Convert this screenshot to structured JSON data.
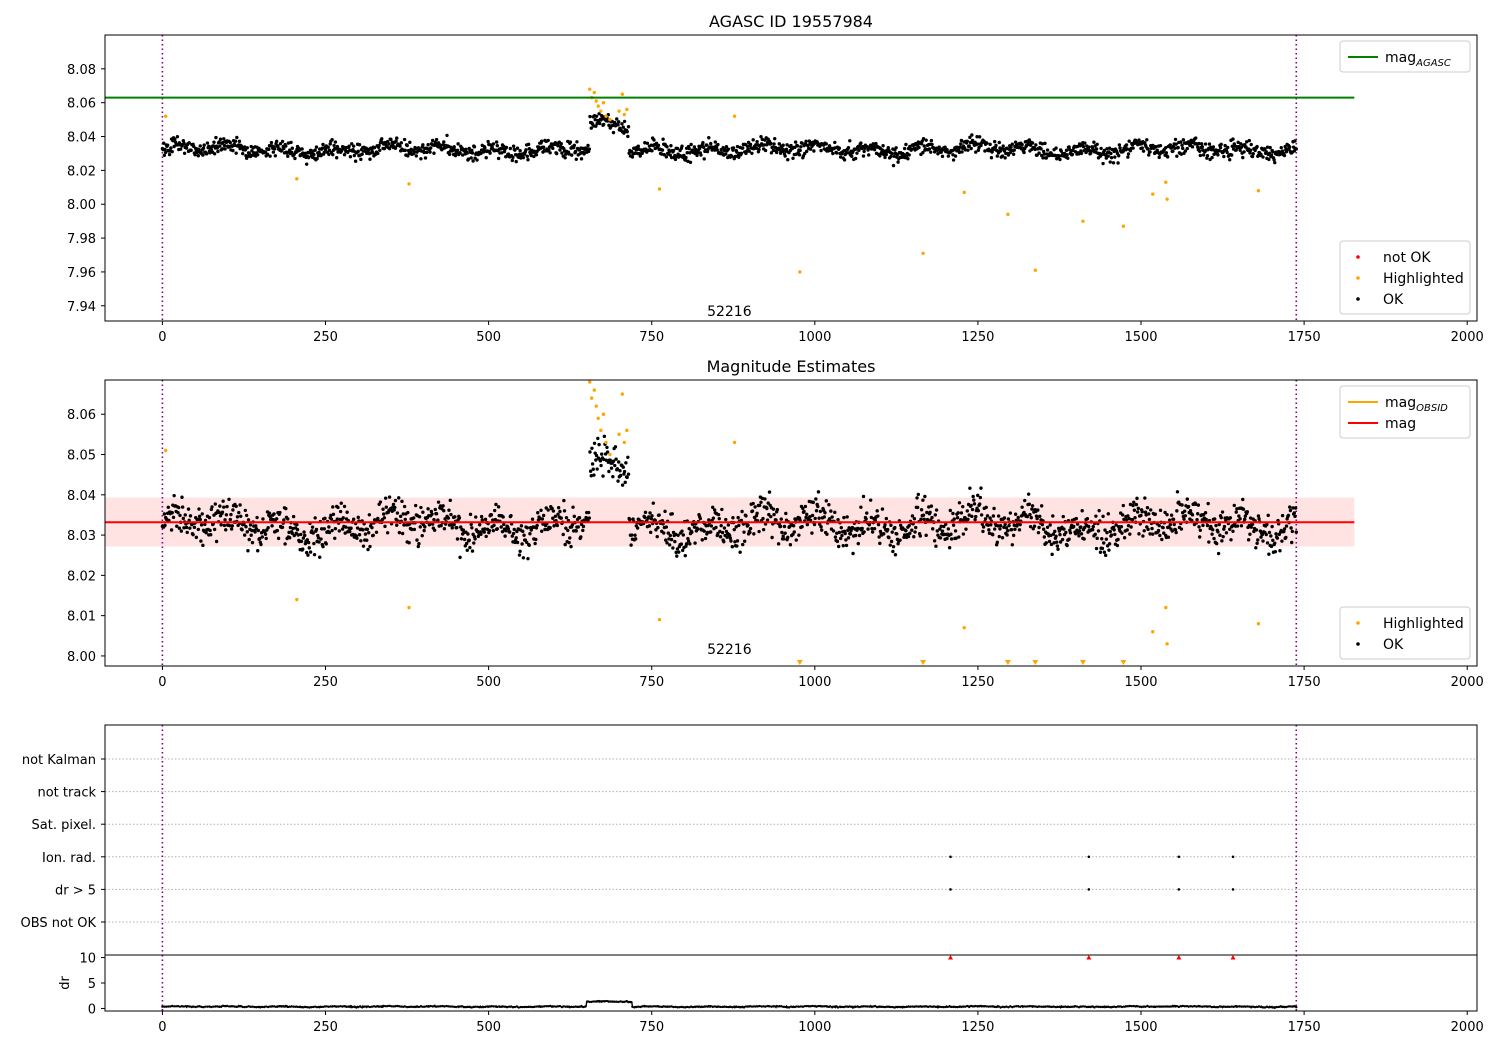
{
  "chart_data": [
    {
      "type": "scatter",
      "title": "AGASC ID 19557984",
      "xlim": [
        -88,
        2015
      ],
      "ylim": [
        7.931,
        8.1
      ],
      "xticks": [
        0,
        250,
        500,
        750,
        1000,
        1250,
        1500,
        1750,
        2000
      ],
      "yticks": [
        7.94,
        7.96,
        7.98,
        8.0,
        8.02,
        8.04,
        8.06,
        8.08
      ],
      "ytick_decimals": 2,
      "grid": false,
      "vlines": [
        0,
        1738
      ],
      "hline": {
        "name": "mag_AGASC",
        "y": 8.063,
        "x_end": 1827,
        "color": "#008000"
      },
      "annotation": {
        "text": "52216",
        "x": 869,
        "y": 7.934
      },
      "legends": [
        {
          "placement": "top-right",
          "entries": [
            {
              "kind": "line",
              "label": "mag",
              "sub": "AGASC",
              "color": "#008000"
            }
          ]
        },
        {
          "placement": "bottom-right",
          "entries": [
            {
              "kind": "point",
              "label": "not OK",
              "color": "#ff0000"
            },
            {
              "kind": "point",
              "label": "Highlighted",
              "color": "#ffa500"
            },
            {
              "kind": "point",
              "label": "OK",
              "color": "#000000"
            }
          ]
        }
      ],
      "series": [
        {
          "name": "OK",
          "color": "#000000",
          "generated": {
            "n": 1738,
            "x_min": 0,
            "x_max": 1738,
            "base": 8.0325,
            "noise": 0.006,
            "bumps": [
              {
                "x0": 655,
                "x1": 715,
                "y": 8.046
              }
            ]
          }
        },
        {
          "name": "Highlighted",
          "color": "#ffa500",
          "x": [
            5,
            206,
            378,
            762,
            877,
            977,
            1166,
            1229,
            1296,
            1338,
            1411,
            1473,
            1518,
            1538,
            1540,
            1680,
            655,
            658,
            662,
            665,
            668,
            672,
            676,
            680,
            686,
            700,
            705,
            708,
            712
          ],
          "y": [
            8.052,
            8.015,
            8.012,
            8.009,
            8.052,
            7.96,
            7.971,
            8.007,
            7.994,
            7.961,
            7.99,
            7.987,
            8.006,
            8.013,
            8.003,
            8.008,
            8.068,
            8.063,
            8.066,
            8.061,
            8.058,
            8.055,
            8.06,
            8.052,
            8.05,
            8.055,
            8.065,
            8.053,
            8.056
          ]
        }
      ]
    },
    {
      "type": "scatter",
      "title": "Magnitude Estimates",
      "xlim": [
        -88,
        2015
      ],
      "ylim": [
        7.9975,
        8.0685
      ],
      "xticks": [
        0,
        250,
        500,
        750,
        1000,
        1250,
        1500,
        1750,
        2000
      ],
      "yticks": [
        8.0,
        8.01,
        8.02,
        8.03,
        8.04,
        8.05,
        8.06
      ],
      "ytick_decimals": 2,
      "grid": false,
      "vlines": [
        0,
        1738
      ],
      "hline": {
        "name": "mag",
        "y": 8.0332,
        "x_end": 1827,
        "color": "#ff0000"
      },
      "band": {
        "y_low": 8.0272,
        "y_high": 8.0393,
        "x_end": 1827,
        "color": "#ffcccc"
      },
      "annotation": {
        "text": "52216",
        "x": 869,
        "y": 8.0005
      },
      "legends": [
        {
          "placement": "top-right",
          "entries": [
            {
              "kind": "line",
              "label": "mag",
              "sub": "OBSID",
              "color": "#ffa500"
            },
            {
              "kind": "line",
              "label": "mag",
              "sub": "",
              "color": "#ff0000"
            }
          ]
        },
        {
          "placement": "bottom-right",
          "entries": [
            {
              "kind": "point",
              "label": "Highlighted",
              "color": "#ffa500"
            },
            {
              "kind": "point",
              "label": "OK",
              "color": "#000000"
            }
          ]
        }
      ],
      "series": [
        {
          "name": "OK",
          "color": "#000000",
          "generated": {
            "n": 1738,
            "x_min": 0,
            "x_max": 1738,
            "base": 8.0325,
            "noise": 0.006,
            "bumps": [
              {
                "x0": 655,
                "x1": 715,
                "y": 8.046
              }
            ]
          }
        },
        {
          "name": "Highlighted",
          "color": "#ffa500",
          "x": [
            5,
            206,
            378,
            762,
            877,
            1229,
            1518,
            1538,
            1540,
            1680,
            655,
            658,
            662,
            665,
            668,
            672,
            676,
            680,
            686,
            700,
            705,
            708,
            712
          ],
          "y": [
            8.051,
            8.014,
            8.012,
            8.009,
            8.053,
            8.007,
            8.006,
            8.012,
            8.003,
            8.008,
            8.068,
            8.064,
            8.066,
            8.062,
            8.059,
            8.056,
            8.06,
            8.053,
            8.05,
            8.055,
            8.065,
            8.053,
            8.056
          ]
        },
        {
          "name": "Highlighted (clipped)",
          "color": "#ffa500",
          "marker": "triangle-down",
          "x": [
            977,
            1166,
            1296,
            1338,
            1411,
            1473
          ],
          "y": [
            7.9975,
            7.9975,
            7.9975,
            7.9975,
            7.9975,
            7.9975
          ]
        }
      ]
    },
    {
      "type": "scatter",
      "title": "",
      "xlim": [
        -88,
        2015
      ],
      "categories": [
        "not Kalman",
        "not track",
        "Sat. pixel.",
        "Ion. rad.",
        "dr > 5",
        "OBS not OK"
      ],
      "grid": true,
      "vlines": [
        0,
        1738
      ],
      "series": [
        {
          "name": "Ion. rad.",
          "color": "#000000",
          "x": [
            1208,
            1420,
            1558,
            1641
          ]
        },
        {
          "name": "dr > 5",
          "color": "#000000",
          "x": [
            1208,
            1420,
            1558,
            1641
          ]
        }
      ]
    },
    {
      "type": "line",
      "title": "",
      "ylabel": "dr",
      "xlim": [
        -88,
        2015
      ],
      "ylim": [
        -0.5,
        10.5
      ],
      "xticks": [
        0,
        250,
        500,
        750,
        1000,
        1250,
        1500,
        1750,
        2000
      ],
      "yticks": [
        0,
        5,
        10
      ],
      "ytick_decimals": 0,
      "grid": false,
      "vlines": [
        0,
        1738
      ],
      "clipped_markers": {
        "color": "#ff0000",
        "x": [
          1208,
          1420,
          1558,
          1641
        ],
        "y": [
          10,
          10,
          10,
          10
        ]
      },
      "series": [
        {
          "name": "dr",
          "color": "#000000",
          "generated": {
            "n": 1738,
            "x_min": 0,
            "x_max": 1738,
            "base": 0.35,
            "noise": 0.15,
            "bumps": [
              {
                "x0": 650,
                "x1": 720,
                "y": 1.3
              }
            ]
          }
        }
      ]
    }
  ]
}
